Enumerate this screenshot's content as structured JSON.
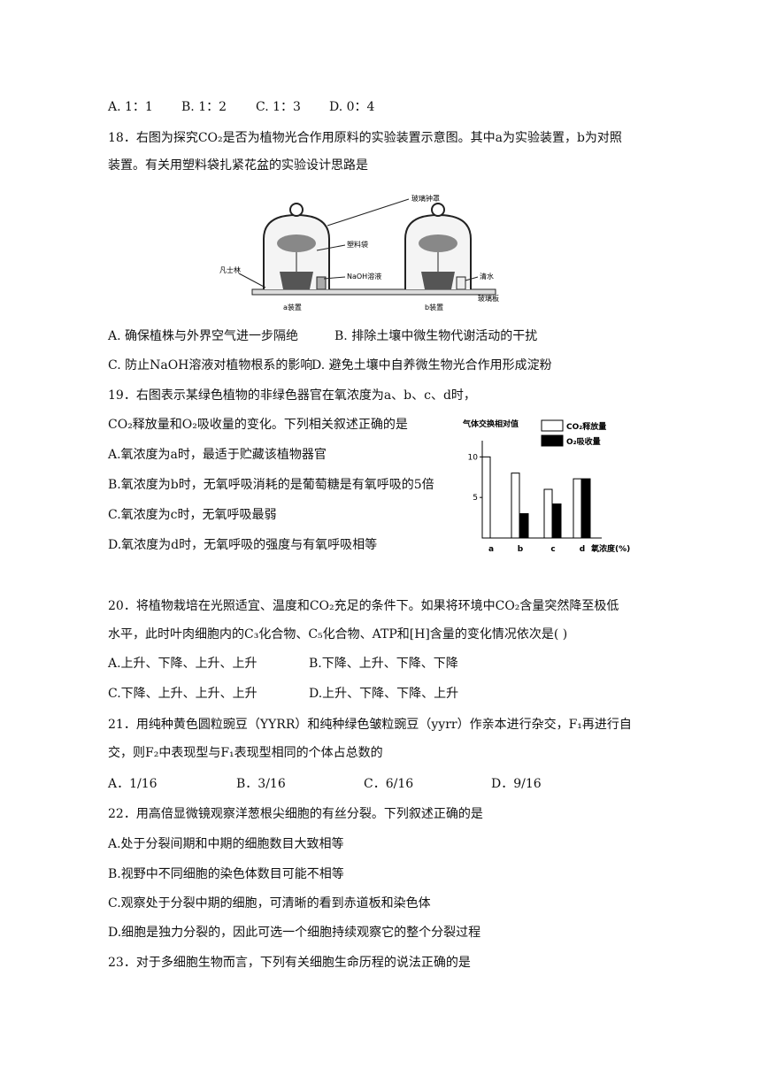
{
  "q17_options": [
    "A. 1：1",
    "B. 1：2",
    "C. 1：3",
    "D. 0：4"
  ],
  "q18": {
    "stem": [
      "18．右图为探究CO₂是否为植物光合作用原料的实验装置示意图。其中a为实验装置，b为对照",
      "装置。有关用塑料袋扎紧花盆的实验设计思路是"
    ],
    "figure_labels": [
      "玻璃钟罩",
      "塑料袋",
      "NaOH溶液",
      "凡士林",
      "清水",
      "玻璃板",
      "a装置",
      "b装置"
    ],
    "options": [
      "A. 确保植株与外界空气进一步隔绝",
      "B. 排除土壤中微生物代谢活动的干扰",
      "C. 防止NaOH溶液对植物根系的影响",
      "D. 避免土壤中自养微生物光合作用形成淀粉"
    ]
  },
  "q19": {
    "stem": [
      "19．右图表示某绿色植物的非绿色器官在氧浓度为a、b、c、d时，",
      "CO₂释放量和O₂吸收量的变化。下列相关叙述正确的是"
    ],
    "options": [
      "A.氧浓度为a时，最适于贮藏该植物器官",
      "B.氧浓度为b时，无氧呼吸消耗的是葡萄糖是有氧呼吸的5倍",
      "C.氧浓度为c时，无氧呼吸最弱",
      "D.氧浓度为d时，无氧呼吸的强度与有氧呼吸相等"
    ],
    "figure": {
      "type": "bar",
      "ylabel": "气体交换相对值",
      "xlabel": "氧浓度(%)",
      "categories": [
        "a",
        "b",
        "c",
        "d"
      ],
      "series": [
        {
          "name": "CO₂释放量",
          "color": "#ffffff",
          "values": [
            10,
            8,
            6,
            7.3
          ]
        },
        {
          "name": "O₂吸收量",
          "color": "#000000",
          "values": [
            0,
            3,
            4.2,
            7.3
          ]
        }
      ],
      "ylim": [
        0,
        12
      ],
      "yticks": [
        5,
        10
      ]
    }
  },
  "q20": {
    "stem": [
      "20．将植物栽培在光照适宜、温度和CO₂充足的条件下。如果将环境中CO₂含量突然降至极低",
      "水平，此时叶肉细胞内的C₃化合物、C₅化合物、ATP和[H]含量的变化情况依次是(   )"
    ],
    "options": [
      "A.上升、下降、上升、上升",
      "B.下降、上升、下降、下降",
      "C.下降、上升、上升、上升",
      "D.上升、下降、下降、上升"
    ]
  },
  "q21": {
    "stem": [
      "21．用纯种黄色圆粒豌豆（YYRR）和纯种绿色皱粒豌豆（yyrr）作亲本进行杂交，F₁再进行自",
      "交，则F₂中表现型与F₁表现型相同的个体占总数的"
    ],
    "options": [
      "A．1/16",
      "B．3/16",
      "C．6/16",
      "D．9/16"
    ]
  },
  "q22": {
    "stem": [
      "22．用高倍显微镜观察洋葱根尖细胞的有丝分裂。下列叙述正确的是"
    ],
    "options": [
      "A.处于分裂间期和中期的细胞数目大致相等",
      "B.视野中不同细胞的染色体数目可能不相等",
      "C.观察处于分裂中期的细胞，可清晰的看到赤道板和染色体",
      "D.细胞是独力分裂的，因此可选一个细胞持续观察它的整个分裂过程"
    ]
  },
  "q23": {
    "stem": [
      "23．对于多细胞生物而言，下列有关细胞生命历程的说法正确的是"
    ]
  }
}
